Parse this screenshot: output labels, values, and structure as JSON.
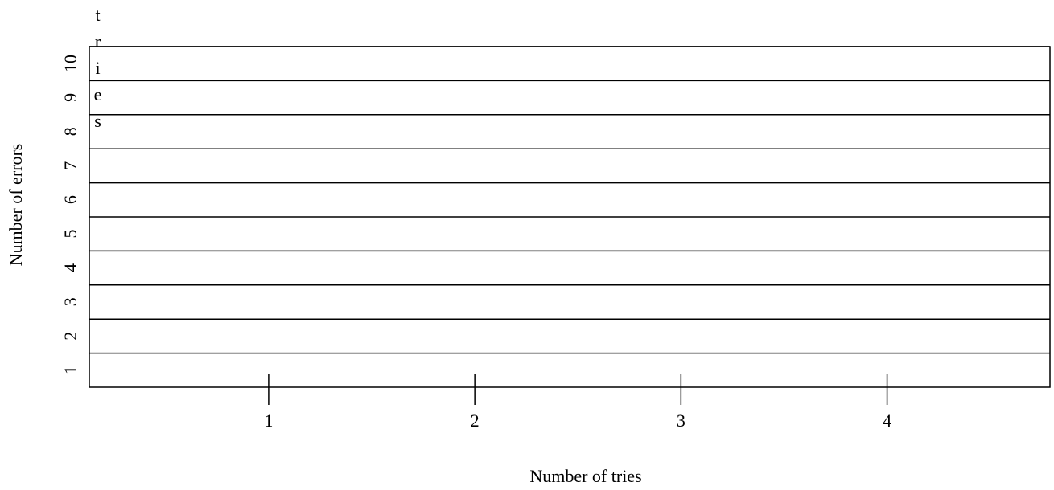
{
  "chart_data": {
    "type": "line",
    "x_label": "Number of tries",
    "y_label": "Number of errors",
    "annotation": "tries",
    "xlim": [
      0.13,
      4.79
    ],
    "xticks": [
      1,
      2,
      3,
      4
    ],
    "ylim": [
      0,
      10
    ],
    "yticks": [
      1,
      2,
      3,
      4,
      5,
      6,
      7,
      8,
      9,
      10
    ],
    "grid": true,
    "series": []
  }
}
